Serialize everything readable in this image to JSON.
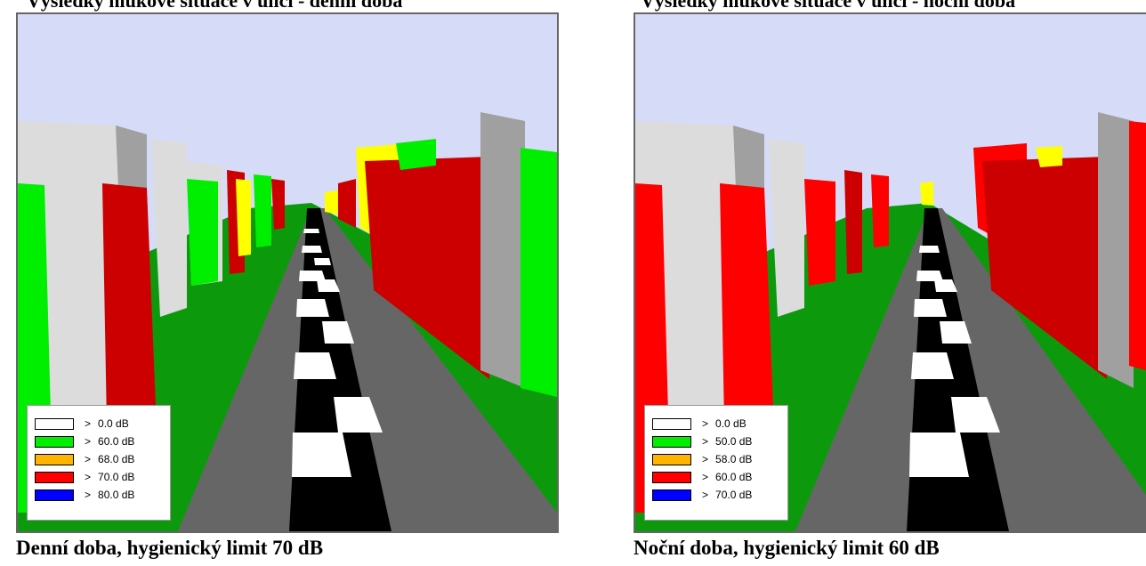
{
  "top_left_text": "Výsledky hlukové situace v ulici - denní doba",
  "top_right_text": "Výsledky hlukové situace v ulici - noční doba",
  "panels": [
    {
      "caption": "Denní doba, hygienický limit 70 dB",
      "legend": [
        {
          "label": "0.0 dB",
          "color": "#ffffff"
        },
        {
          "label": "60.0 dB",
          "color": "#00ee00"
        },
        {
          "label": "68.0 dB",
          "color": "#ffb400"
        },
        {
          "label": "70.0 dB",
          "color": "#ff0000"
        },
        {
          "label": "80.0 dB",
          "color": "#0000ff"
        }
      ]
    },
    {
      "caption": "Noční doba, hygienický limit 60 dB",
      "legend": [
        {
          "label": "0.0 dB",
          "color": "#ffffff"
        },
        {
          "label": "50.0 dB",
          "color": "#00ee00"
        },
        {
          "label": "58.0 dB",
          "color": "#ffb400"
        },
        {
          "label": "60.0 dB",
          "color": "#ff0000"
        },
        {
          "label": "70.0 dB",
          "color": "#0000ff"
        }
      ]
    }
  ],
  "legend_symbol": ">"
}
